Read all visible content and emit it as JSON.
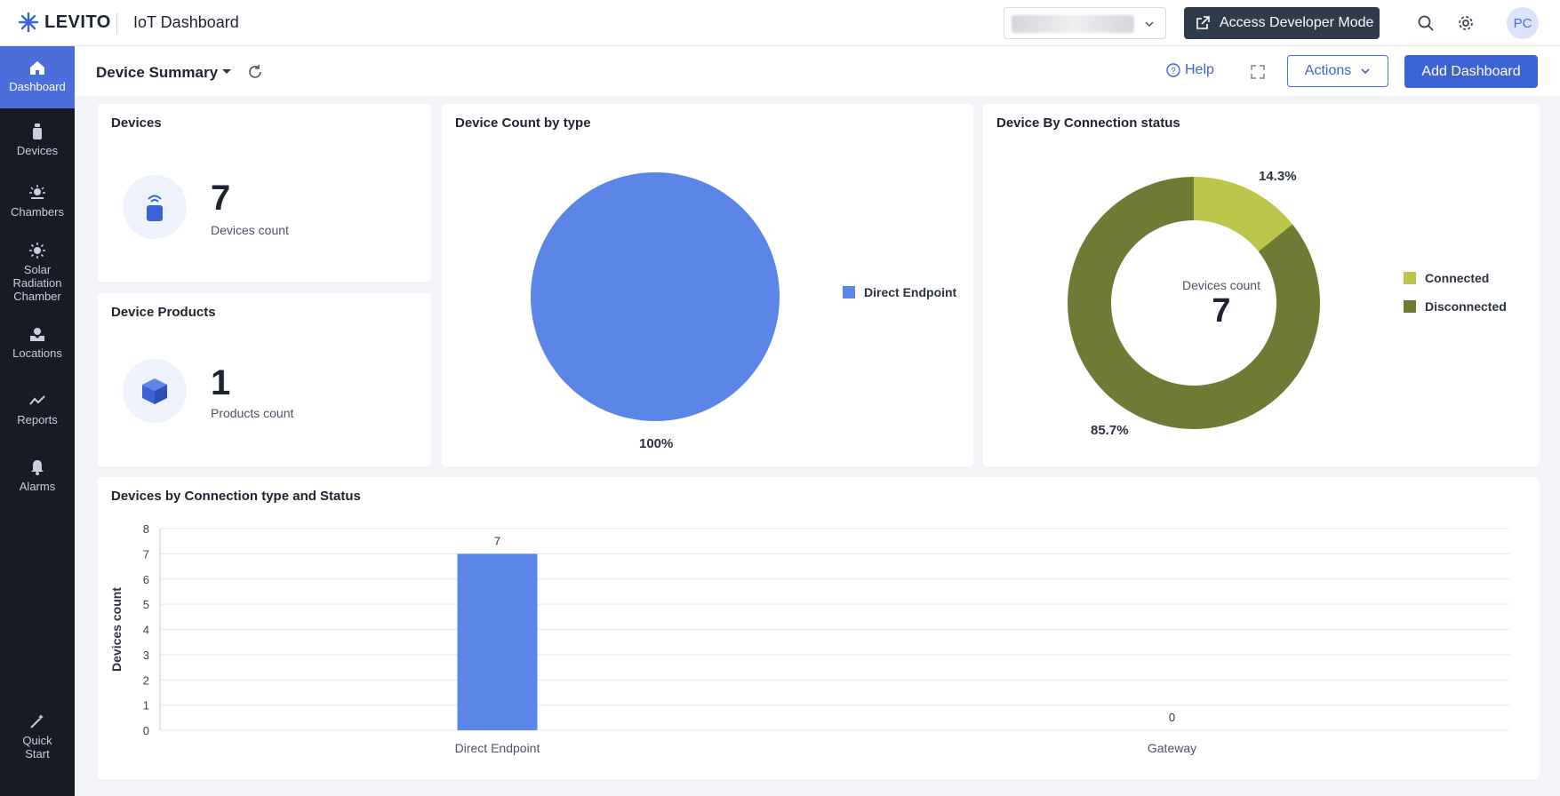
{
  "topbar": {
    "brand": "LEVITO",
    "app_title": "IoT Dashboard",
    "dev_mode_label": "Access Developer Mode",
    "avatar_initials": "PC"
  },
  "sidebar": {
    "items": [
      {
        "label": "Dashboard",
        "icon": "home-icon",
        "active": true
      },
      {
        "label": "Devices",
        "icon": "device-icon"
      },
      {
        "label": "Chambers",
        "icon": "chamber-icon"
      },
      {
        "label": "Solar Radiation Chamber",
        "icon": "sun-icon"
      },
      {
        "label": "Locations",
        "icon": "location-icon"
      },
      {
        "label": "Reports",
        "icon": "reports-icon"
      },
      {
        "label": "Alarms",
        "icon": "bell-icon"
      },
      {
        "label": "Quick Start",
        "icon": "magic-wand-icon"
      }
    ]
  },
  "header": {
    "title": "Device Summary",
    "help_label": "Help",
    "actions_label": "Actions",
    "add_label": "Add Dashboard"
  },
  "cards": {
    "devices": {
      "title": "Devices",
      "value": "7",
      "label": "Devices count"
    },
    "products": {
      "title": "Device Products",
      "value": "1",
      "label": "Products count"
    },
    "count_by_type": {
      "title": "Device Count by type",
      "legend": "Direct Endpoint",
      "pct_label": "100%"
    },
    "connection_status": {
      "title": "Device By Connection status",
      "center_label": "Devices count",
      "center_value": "7",
      "connected_pct": "14.3%",
      "disconnected_pct": "85.7%",
      "legend_connected": "Connected",
      "legend_disconnected": "Disconnected"
    },
    "bar": {
      "title": "Devices by Connection type and Status"
    }
  },
  "colors": {
    "accent": "#3c63d6",
    "pie_blue": "#5b86e8",
    "connected": "#bcc64a",
    "disconnected": "#6f7a35"
  },
  "chart_data": [
    {
      "type": "pie",
      "title": "Device Count by type",
      "categories": [
        "Direct Endpoint"
      ],
      "values": [
        7
      ],
      "labels": [
        "100%"
      ],
      "legend": "right"
    },
    {
      "type": "pie",
      "title": "Device By Connection status",
      "categories": [
        "Connected",
        "Disconnected"
      ],
      "values": [
        1,
        6
      ],
      "labels": [
        "14.3%",
        "85.7%"
      ],
      "center_text": "Devices count 7",
      "legend": "right"
    },
    {
      "type": "bar",
      "title": "Devices by Connection type and Status",
      "categories": [
        "Direct Endpoint",
        "Gateway"
      ],
      "values": [
        7,
        0
      ],
      "ylabel": "Devices count",
      "yticks": [
        "0",
        "1",
        "2",
        "3",
        "4",
        "5",
        "6",
        "7",
        "8"
      ],
      "ylim": [
        0,
        8
      ],
      "grid": true
    }
  ]
}
